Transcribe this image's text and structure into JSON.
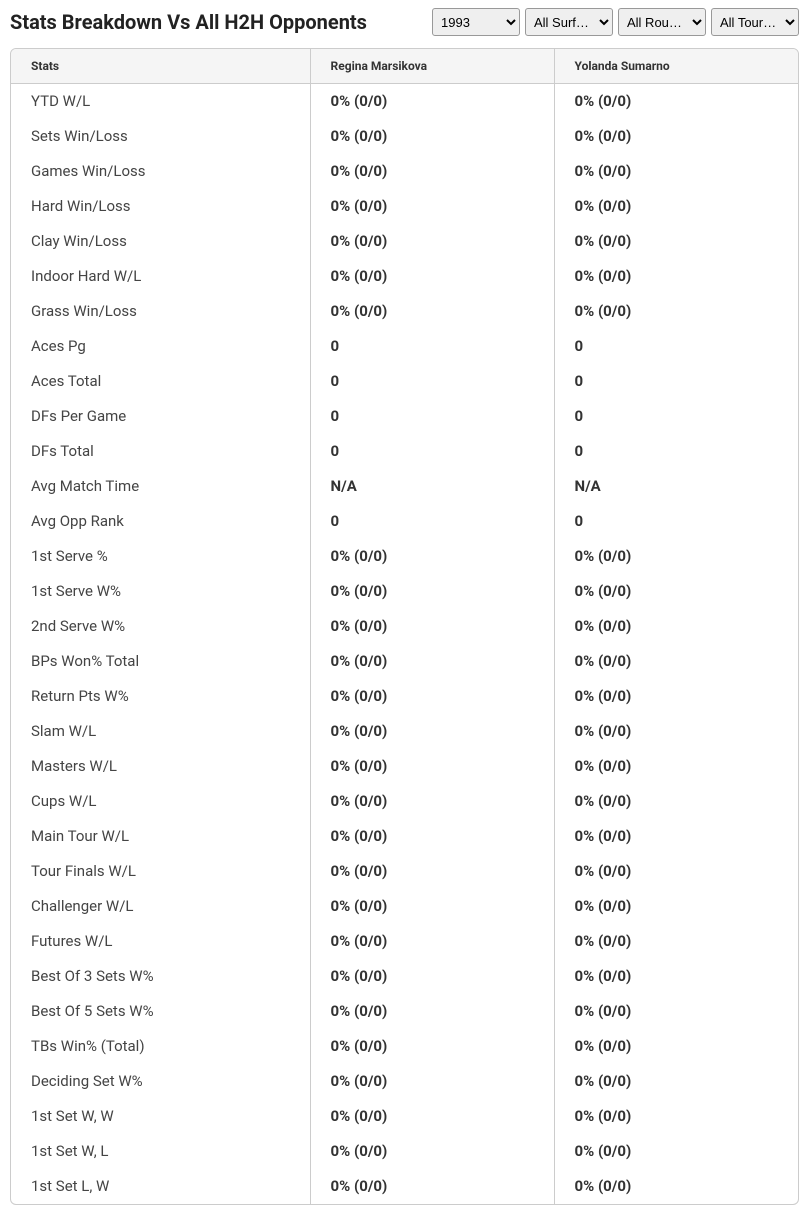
{
  "header": {
    "title": "Stats Breakdown Vs All H2H Opponents"
  },
  "filters": {
    "year": {
      "selected": "1993",
      "options": [
        "1993"
      ]
    },
    "surface": {
      "selected": "All Surf…",
      "options": [
        "All Surf…"
      ]
    },
    "round": {
      "selected": "All Rou…",
      "options": [
        "All Rou…"
      ]
    },
    "tourney": {
      "selected": "All Tour…",
      "options": [
        "All Tour…"
      ]
    }
  },
  "table": {
    "columns": {
      "stats": "Stats",
      "player1": "Regina Marsikova",
      "player2": "Yolanda Sumarno"
    },
    "rows": [
      {
        "label": "YTD W/L",
        "p1": "0% (0/0)",
        "p2": "0% (0/0)"
      },
      {
        "label": "Sets Win/Loss",
        "p1": "0% (0/0)",
        "p2": "0% (0/0)"
      },
      {
        "label": "Games Win/Loss",
        "p1": "0% (0/0)",
        "p2": "0% (0/0)"
      },
      {
        "label": "Hard Win/Loss",
        "p1": "0% (0/0)",
        "p2": "0% (0/0)"
      },
      {
        "label": "Clay Win/Loss",
        "p1": "0% (0/0)",
        "p2": "0% (0/0)"
      },
      {
        "label": "Indoor Hard W/L",
        "p1": "0% (0/0)",
        "p2": "0% (0/0)"
      },
      {
        "label": "Grass Win/Loss",
        "p1": "0% (0/0)",
        "p2": "0% (0/0)"
      },
      {
        "label": "Aces Pg",
        "p1": "0",
        "p2": "0"
      },
      {
        "label": "Aces Total",
        "p1": "0",
        "p2": "0"
      },
      {
        "label": "DFs Per Game",
        "p1": "0",
        "p2": "0"
      },
      {
        "label": "DFs Total",
        "p1": "0",
        "p2": "0"
      },
      {
        "label": "Avg Match Time",
        "p1": "N/A",
        "p2": "N/A"
      },
      {
        "label": "Avg Opp Rank",
        "p1": "0",
        "p2": "0"
      },
      {
        "label": "1st Serve %",
        "p1": "0% (0/0)",
        "p2": "0% (0/0)"
      },
      {
        "label": "1st Serve W%",
        "p1": "0% (0/0)",
        "p2": "0% (0/0)"
      },
      {
        "label": "2nd Serve W%",
        "p1": "0% (0/0)",
        "p2": "0% (0/0)"
      },
      {
        "label": "BPs Won% Total",
        "p1": "0% (0/0)",
        "p2": "0% (0/0)"
      },
      {
        "label": "Return Pts W%",
        "p1": "0% (0/0)",
        "p2": "0% (0/0)"
      },
      {
        "label": "Slam W/L",
        "p1": "0% (0/0)",
        "p2": "0% (0/0)"
      },
      {
        "label": "Masters W/L",
        "p1": "0% (0/0)",
        "p2": "0% (0/0)"
      },
      {
        "label": "Cups W/L",
        "p1": "0% (0/0)",
        "p2": "0% (0/0)"
      },
      {
        "label": "Main Tour W/L",
        "p1": "0% (0/0)",
        "p2": "0% (0/0)"
      },
      {
        "label": "Tour Finals W/L",
        "p1": "0% (0/0)",
        "p2": "0% (0/0)"
      },
      {
        "label": "Challenger W/L",
        "p1": "0% (0/0)",
        "p2": "0% (0/0)"
      },
      {
        "label": "Futures W/L",
        "p1": "0% (0/0)",
        "p2": "0% (0/0)"
      },
      {
        "label": "Best Of 3 Sets W%",
        "p1": "0% (0/0)",
        "p2": "0% (0/0)"
      },
      {
        "label": "Best Of 5 Sets W%",
        "p1": "0% (0/0)",
        "p2": "0% (0/0)"
      },
      {
        "label": "TBs Win% (Total)",
        "p1": "0% (0/0)",
        "p2": "0% (0/0)"
      },
      {
        "label": "Deciding Set W%",
        "p1": "0% (0/0)",
        "p2": "0% (0/0)"
      },
      {
        "label": "1st Set W, W",
        "p1": "0% (0/0)",
        "p2": "0% (0/0)"
      },
      {
        "label": "1st Set W, L",
        "p1": "0% (0/0)",
        "p2": "0% (0/0)"
      },
      {
        "label": "1st Set L, W",
        "p1": "0% (0/0)",
        "p2": "0% (0/0)"
      }
    ]
  }
}
